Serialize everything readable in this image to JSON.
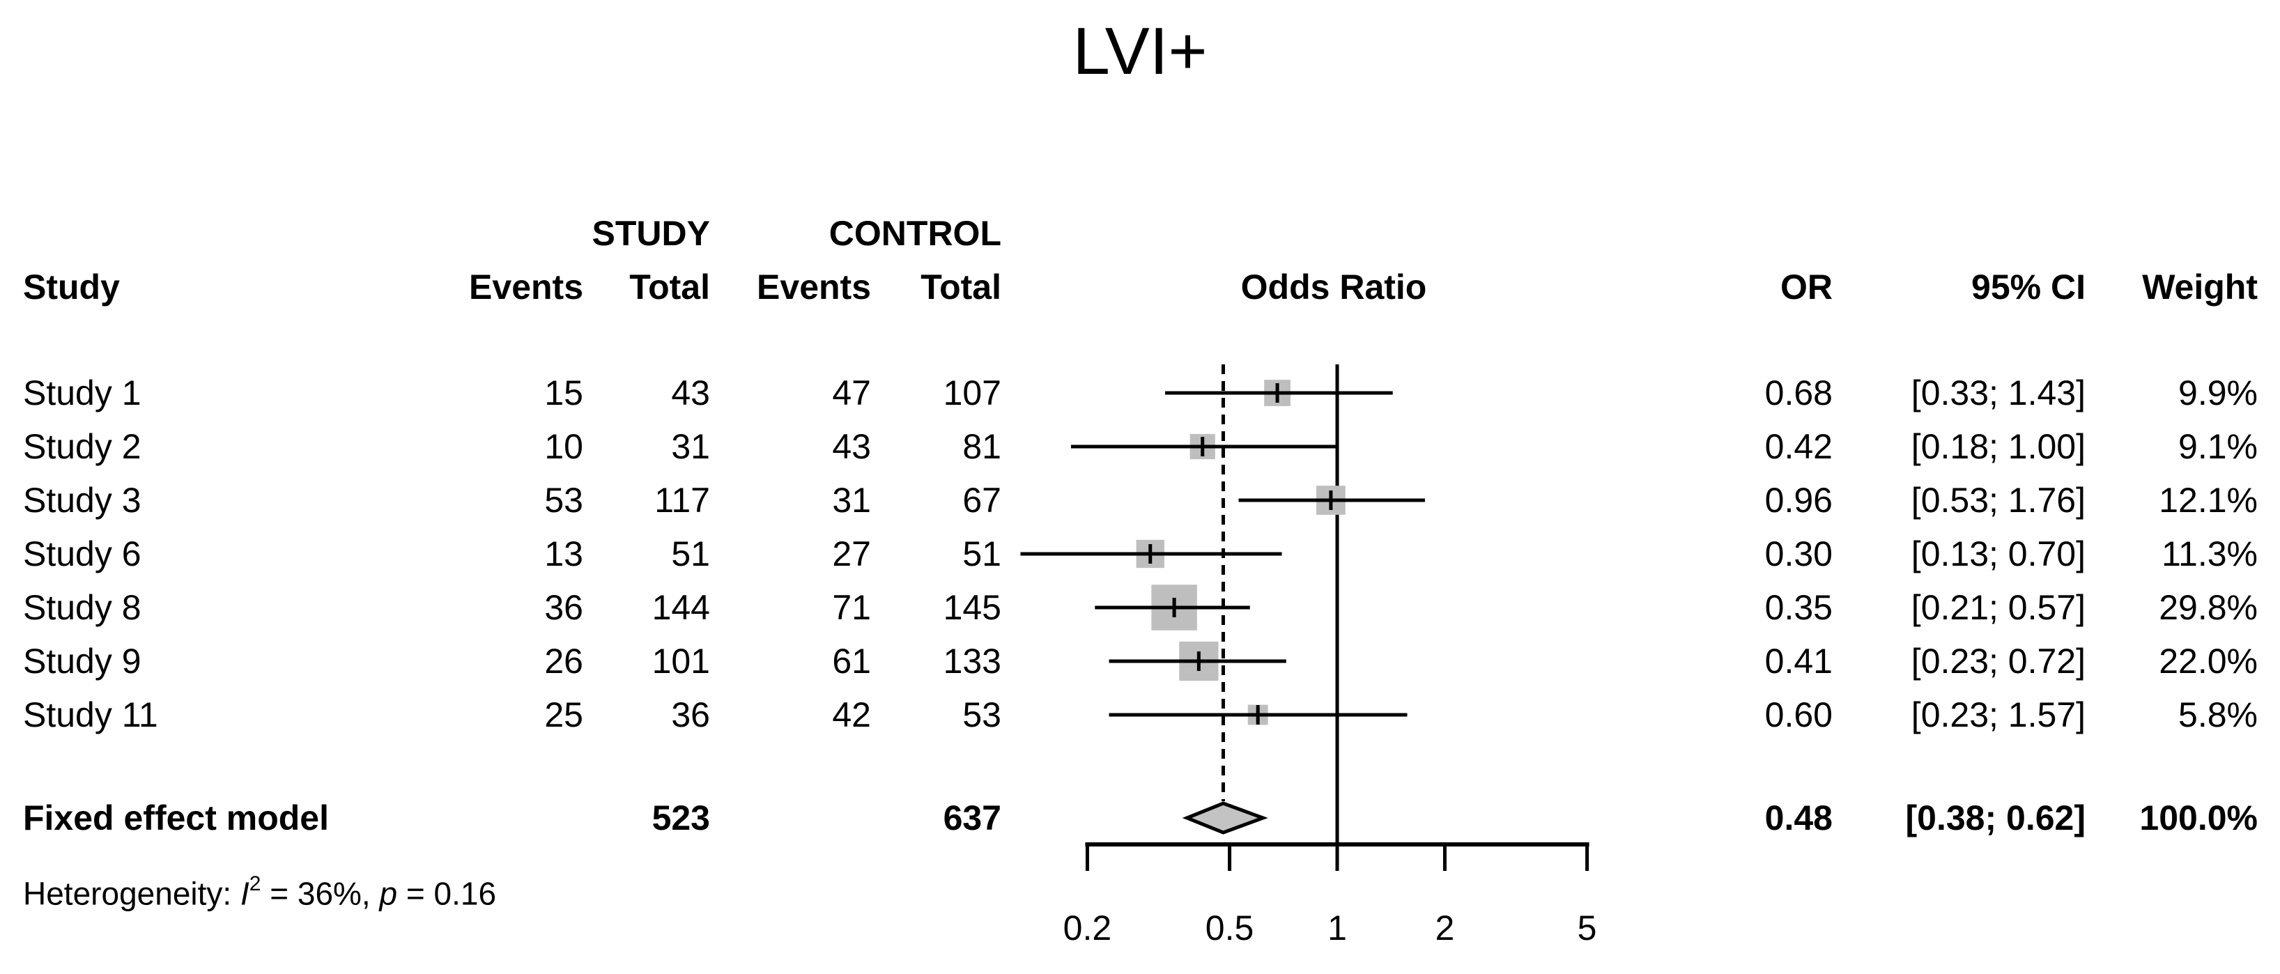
{
  "title": "LVI+",
  "headers": {
    "group_study": "STUDY",
    "group_control": "CONTROL",
    "study": "Study",
    "events1": "Events",
    "total1": "Total",
    "events2": "Events",
    "total2": "Total",
    "odds_ratio": "Odds Ratio",
    "or": "OR",
    "ci": "95% CI",
    "weight": "Weight"
  },
  "heterogeneity": {
    "prefix": "Heterogeneity: ",
    "i_symbol": "I",
    "i_sup": "2",
    "mid": " = 36%, ",
    "p_symbol": "p",
    "suffix": " = 0.16"
  },
  "colors": {
    "square_fill": "#bebebe",
    "diamond_fill": "#c3c3c3",
    "line": "#000000",
    "text": "#000000",
    "background": "#ffffff"
  },
  "chart_data": {
    "type": "forest",
    "title": "LVI+",
    "effect_measure": "Odds Ratio",
    "x_scale": "log",
    "grid": false,
    "legend_position": "none",
    "axis_tick_values": [
      0.2,
      0.5,
      1,
      2,
      5
    ],
    "axis_tick_labels": [
      "0.2",
      "0.5",
      "1",
      "2",
      "5"
    ],
    "ref_line_solid": 1,
    "ref_line_dashed": 0.48,
    "studies": [
      {
        "label": "Study 1",
        "study_events": "15",
        "study_total": "43",
        "control_events": "47",
        "control_total": "107",
        "or": 0.68,
        "ci_low": 0.33,
        "ci_high": 1.43,
        "or_text": "0.68",
        "ci_text": "[0.33; 1.43]",
        "weight_pct": 9.9,
        "weight_text": "9.9%"
      },
      {
        "label": "Study 2",
        "study_events": "10",
        "study_total": "31",
        "control_events": "43",
        "control_total": "81",
        "or": 0.42,
        "ci_low": 0.18,
        "ci_high": 1.0,
        "or_text": "0.42",
        "ci_text": "[0.18; 1.00]",
        "weight_pct": 9.1,
        "weight_text": "9.1%"
      },
      {
        "label": "Study 3",
        "study_events": "53",
        "study_total": "117",
        "control_events": "31",
        "control_total": "67",
        "or": 0.96,
        "ci_low": 0.53,
        "ci_high": 1.76,
        "or_text": "0.96",
        "ci_text": "[0.53; 1.76]",
        "weight_pct": 12.1,
        "weight_text": "12.1%"
      },
      {
        "label": "Study 6",
        "study_events": "13",
        "study_total": "51",
        "control_events": "27",
        "control_total": "51",
        "or": 0.3,
        "ci_low": 0.13,
        "ci_high": 0.7,
        "or_text": "0.30",
        "ci_text": "[0.13; 0.70]",
        "weight_pct": 11.3,
        "weight_text": "11.3%"
      },
      {
        "label": "Study 8",
        "study_events": "36",
        "study_total": "144",
        "control_events": "71",
        "control_total": "145",
        "or": 0.35,
        "ci_low": 0.21,
        "ci_high": 0.57,
        "or_text": "0.35",
        "ci_text": "[0.21; 0.57]",
        "weight_pct": 29.8,
        "weight_text": "29.8%"
      },
      {
        "label": "Study 9",
        "study_events": "26",
        "study_total": "101",
        "control_events": "61",
        "control_total": "133",
        "or": 0.41,
        "ci_low": 0.23,
        "ci_high": 0.72,
        "or_text": "0.41",
        "ci_text": "[0.23; 0.72]",
        "weight_pct": 22.0,
        "weight_text": "22.0%"
      },
      {
        "label": "Study 11",
        "study_events": "25",
        "study_total": "36",
        "control_events": "42",
        "control_total": "53",
        "or": 0.6,
        "ci_low": 0.23,
        "ci_high": 1.57,
        "or_text": "0.60",
        "ci_text": "[0.23; 1.57]",
        "weight_pct": 5.8,
        "weight_text": "5.8%"
      }
    ],
    "pooled": {
      "label": "Fixed effect model",
      "study_total": "523",
      "control_total": "637",
      "or": 0.48,
      "ci_low": 0.38,
      "ci_high": 0.62,
      "or_text": "0.48",
      "ci_text": "[0.38; 0.62]",
      "weight_text": "100.0%"
    },
    "heterogeneity_text": "Heterogeneity: I2 = 36%, p = 0.16"
  }
}
